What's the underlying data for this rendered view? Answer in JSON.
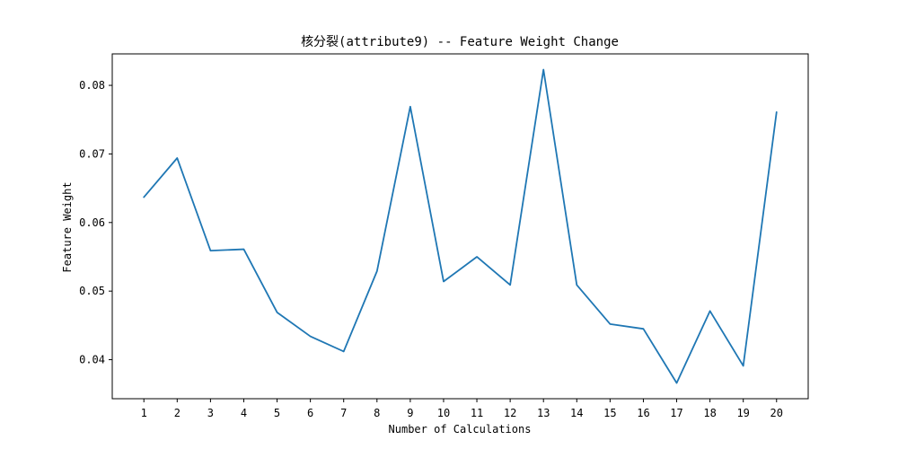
{
  "chart_data": {
    "type": "line",
    "title": "核分裂(attribute9) -- Feature Weight Change",
    "xlabel": "Number of Calculations",
    "ylabel": "Feature Weight",
    "x": [
      1,
      2,
      3,
      4,
      5,
      6,
      7,
      8,
      9,
      10,
      11,
      12,
      13,
      14,
      15,
      16,
      17,
      18,
      19,
      20
    ],
    "x_tick_labels": [
      "1",
      "2",
      "3",
      "4",
      "5",
      "6",
      "7",
      "8",
      "9",
      "10",
      "11",
      "12",
      "13",
      "14",
      "15",
      "16",
      "17",
      "18",
      "19",
      "20"
    ],
    "series": [
      {
        "values": [
          0.0637,
          0.0694,
          0.0559,
          0.0561,
          0.0469,
          0.0434,
          0.0412,
          0.0529,
          0.0769,
          0.0514,
          0.055,
          0.0509,
          0.0823,
          0.0509,
          0.0452,
          0.0445,
          0.0366,
          0.0471,
          0.0391,
          0.0761
        ],
        "color": "#1f77b4"
      }
    ],
    "y_ticks": [
      0.04,
      0.05,
      0.06,
      0.07,
      0.08
    ],
    "y_tick_labels": [
      "0.04",
      "0.05",
      "0.06",
      "0.07",
      "0.08"
    ],
    "xlim": [
      0.05,
      20.95
    ],
    "ylim": [
      0.03431,
      0.08459
    ],
    "grid": false,
    "legend": "none"
  }
}
